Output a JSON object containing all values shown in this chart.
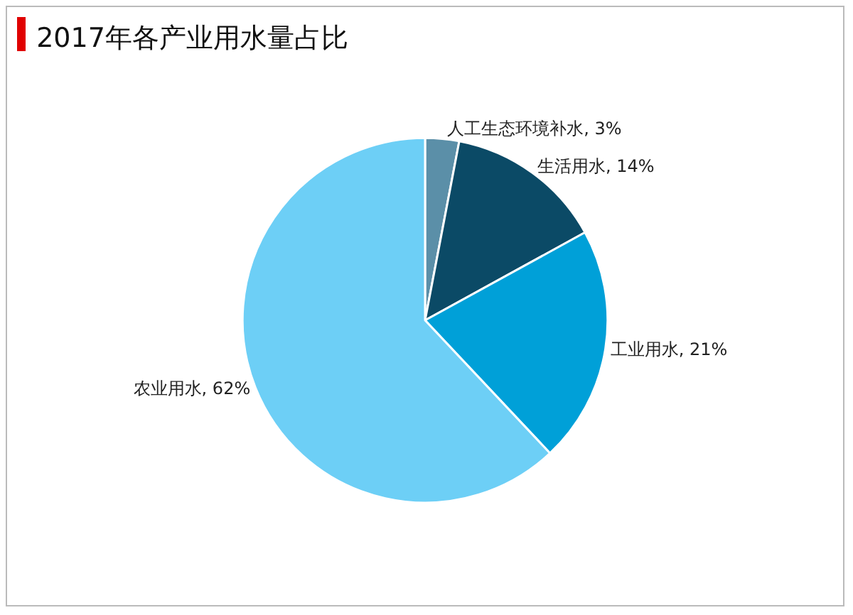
{
  "chart_data": {
    "type": "pie",
    "title": "2017年各产业用水量占比",
    "categories": [
      "人工生态环境补水",
      "生活用水",
      "工业用水",
      "农业用水"
    ],
    "values": [
      3,
      14,
      21,
      62
    ],
    "value_labels": [
      "3%",
      "14%",
      "21%",
      "62%"
    ],
    "colors": [
      "#5b8fa8",
      "#0b4a66",
      "#00a0d8",
      "#6dcff6"
    ],
    "legend": false
  }
}
